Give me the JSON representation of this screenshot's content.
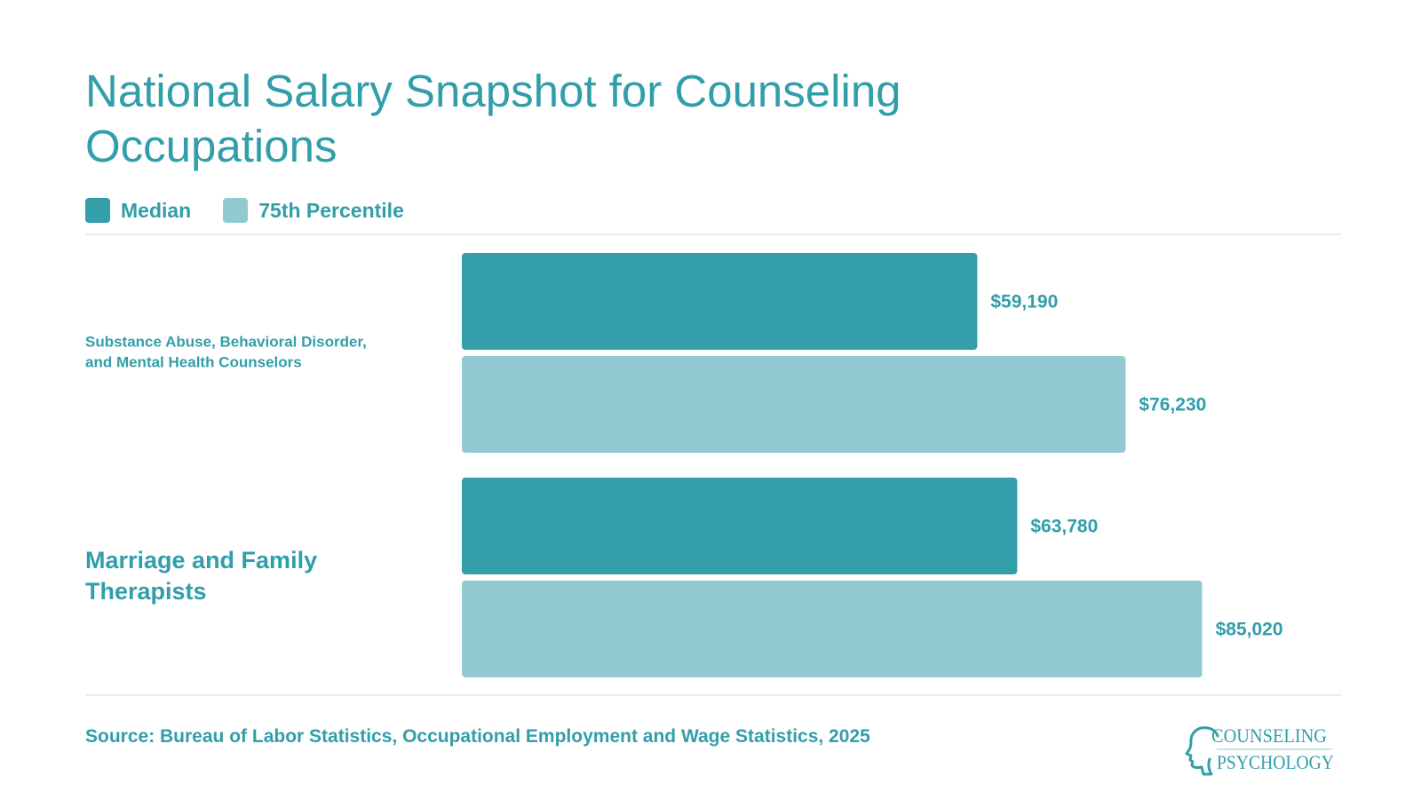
{
  "title": "National Salary Snapshot for Counseling Occupations",
  "source": "Source: Bureau of Labor Statistics, Occupational Employment and Wage Statistics, 2025",
  "logo": {
    "line1": "COUNSELING",
    "line2": "PSYCHOLOGY"
  },
  "colors": {
    "median": "#339fab",
    "percentile75": "#91cad1",
    "text": "#319ea9",
    "rule": "#dfeff1"
  },
  "chart_data": {
    "type": "bar",
    "orientation": "horizontal",
    "title": "National Salary Snapshot for Counseling Occupations",
    "categories": [
      "Substance Abuse, Behavioral Disorder, and Mental Health Counselors",
      "Marriage and Family Therapists"
    ],
    "series": [
      {
        "name": "Median",
        "values": [
          59190,
          63780
        ],
        "labels": [
          "$59,190",
          "$63,780"
        ],
        "color": "#339fab"
      },
      {
        "name": "75th Percentile",
        "values": [
          76230,
          85020
        ],
        "labels": [
          "$76,230",
          "$85,020"
        ],
        "color": "#91cad1"
      }
    ],
    "legend": "top-left",
    "grid": false,
    "xlim": [
      0,
      100000
    ]
  }
}
